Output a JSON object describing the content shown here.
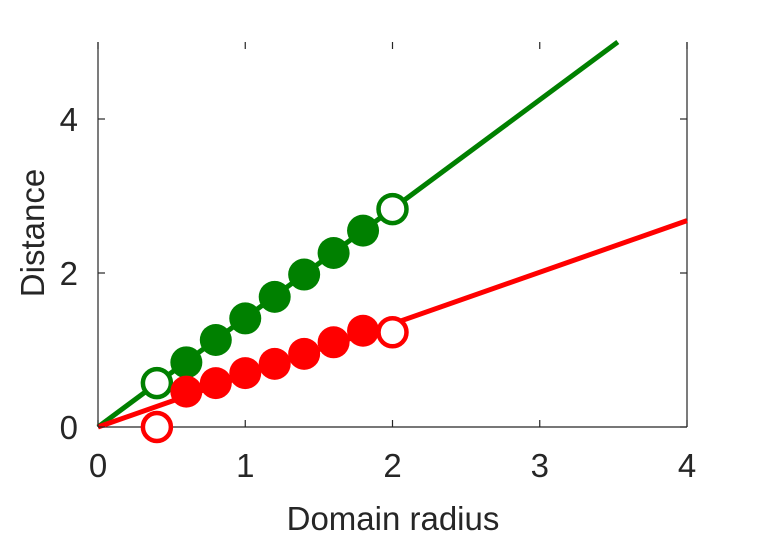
{
  "chart_data": {
    "type": "scatter",
    "xlabel": "Domain radius",
    "ylabel": "Distance",
    "xlim": [
      0,
      4
    ],
    "ylim": [
      0,
      5
    ],
    "xticks": [
      0,
      1,
      2,
      3,
      4
    ],
    "yticks": [
      0,
      2,
      4
    ],
    "grid": false,
    "series": [
      {
        "color": "#008000",
        "line": {
          "x": [
            0,
            3.53
          ],
          "y": [
            0,
            5
          ]
        },
        "filled_points": {
          "x": [
            0.6,
            0.8,
            1.0,
            1.2,
            1.4,
            1.6,
            1.8
          ],
          "y": [
            0.84,
            1.13,
            1.41,
            1.69,
            1.98,
            2.26,
            2.55
          ]
        },
        "open_points": {
          "x": [
            0.4,
            2.0
          ],
          "y": [
            0.57,
            2.83
          ]
        }
      },
      {
        "color": "#ff0000",
        "line": {
          "x": [
            0,
            4
          ],
          "y": [
            0,
            2.68
          ]
        },
        "filled_points": {
          "x": [
            0.6,
            0.8,
            1.0,
            1.2,
            1.4,
            1.6,
            1.8
          ],
          "y": [
            0.46,
            0.57,
            0.7,
            0.82,
            0.95,
            1.1,
            1.25
          ]
        },
        "open_points": {
          "x": [
            0.4,
            2.0
          ],
          "y": [
            0.0,
            1.23
          ]
        }
      }
    ]
  }
}
